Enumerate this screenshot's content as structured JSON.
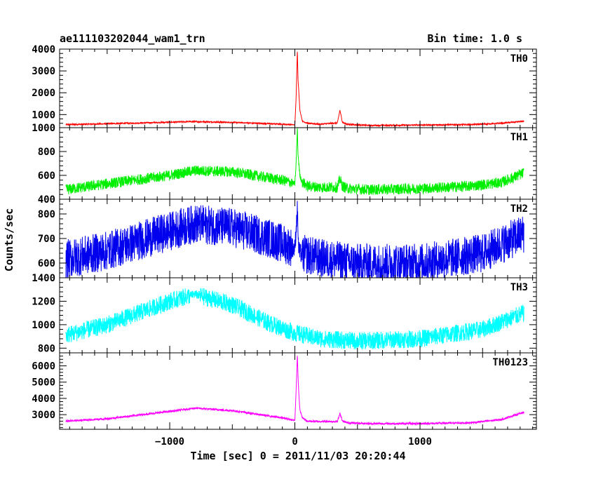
{
  "chart_data": {
    "type": "line",
    "title": "ae111103202044_wam1_trn",
    "bin_time": "Bin time: 1.0 s",
    "xlabel": "Time [sec] 0 = 2011/11/03 20:20:44",
    "ylabel": "Counts/sec",
    "xlim": [
      -1880,
      1930
    ],
    "x_ticks": [
      -1000,
      0,
      1000
    ],
    "x_tick_labels": [
      "−1000",
      "0",
      "1000"
    ],
    "panels": [
      {
        "name": "TH0",
        "color": "#ff0000",
        "ylim": [
          400,
          4000
        ],
        "y_ticks": [
          1000,
          2000,
          3000,
          4000
        ],
        "noise": 30,
        "x": [
          -1830,
          -1500,
          -1000,
          -800,
          -500,
          -100,
          0,
          10,
          20,
          25,
          30,
          40,
          60,
          100,
          200,
          340,
          360,
          380,
          420,
          600,
          1000,
          1400,
          1650,
          1830
        ],
        "y": [
          540,
          580,
          650,
          680,
          640,
          560,
          530,
          1800,
          4000,
          2600,
          2200,
          1200,
          700,
          600,
          560,
          620,
          1200,
          650,
          550,
          500,
          520,
          540,
          600,
          700
        ]
      },
      {
        "name": "TH1",
        "color": "#00ee00",
        "ylim": [
          400,
          1000
        ],
        "y_ticks": [
          400,
          600,
          800,
          1000
        ],
        "noise": 45,
        "x": [
          -1830,
          -1500,
          -1000,
          -800,
          -500,
          -100,
          0,
          10,
          20,
          25,
          30,
          40,
          60,
          100,
          200,
          340,
          360,
          380,
          420,
          600,
          1000,
          1400,
          1650,
          1830
        ],
        "y": [
          480,
          530,
          600,
          640,
          630,
          560,
          530,
          700,
          1000,
          780,
          720,
          600,
          540,
          510,
          500,
          500,
          570,
          510,
          490,
          480,
          490,
          510,
          540,
          620
        ]
      },
      {
        "name": "TH2",
        "color": "#0000ee",
        "ylim": [
          540,
          860
        ],
        "y_ticks": [
          600,
          700,
          800
        ],
        "noise": 80,
        "x": [
          -1830,
          -1500,
          -1000,
          -800,
          -500,
          -200,
          0,
          20,
          30,
          40,
          200,
          500,
          1000,
          1500,
          1830
        ],
        "y": [
          615,
          650,
          730,
          760,
          745,
          700,
          660,
          820,
          660,
          640,
          620,
          600,
          600,
          640,
          720
        ]
      },
      {
        "name": "TH3",
        "color": "#00ffff",
        "ylim": [
          760,
          1400
        ],
        "y_ticks": [
          800,
          1000,
          1200,
          1400
        ],
        "noise": 75,
        "x": [
          -1830,
          -1500,
          -1000,
          -800,
          -500,
          -200,
          0,
          200,
          500,
          1000,
          1500,
          1830
        ],
        "y": [
          910,
          1000,
          1200,
          1260,
          1170,
          1010,
          930,
          880,
          860,
          880,
          960,
          1100
        ]
      },
      {
        "name": "TH0123",
        "color": "#ff00ff",
        "ylim": [
          2100,
          6800
        ],
        "y_ticks": [
          3000,
          4000,
          5000,
          6000
        ],
        "noise": 60,
        "x": [
          -1830,
          -1500,
          -1000,
          -800,
          -500,
          -100,
          0,
          10,
          20,
          25,
          30,
          40,
          60,
          100,
          200,
          340,
          360,
          380,
          420,
          600,
          1000,
          1400,
          1650,
          1830
        ],
        "y": [
          2600,
          2750,
          3200,
          3400,
          3250,
          2800,
          2650,
          4500,
          6700,
          5400,
          4500,
          3300,
          2800,
          2600,
          2580,
          2580,
          3100,
          2600,
          2500,
          2450,
          2450,
          2500,
          2700,
          3150
        ]
      }
    ]
  }
}
